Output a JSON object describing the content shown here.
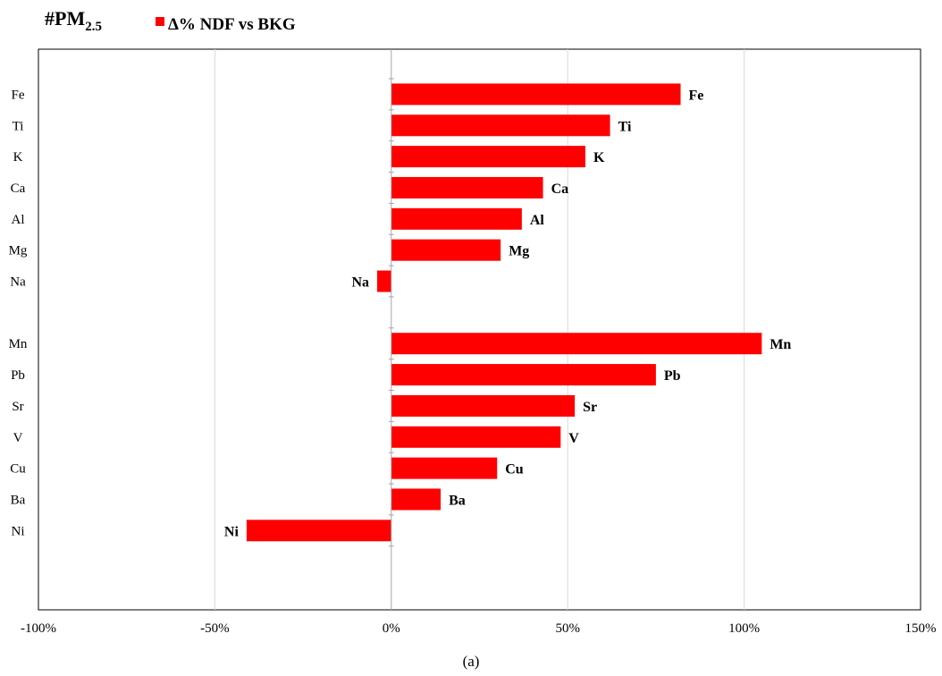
{
  "title": {
    "main": "#PM",
    "subscript": "2.5"
  },
  "legend": {
    "label": "Δ% NDF vs BKG",
    "color": "#ff0000",
    "placement": "top"
  },
  "caption": "(a)",
  "chart_data": {
    "type": "bar",
    "orientation": "horizontal",
    "categories": [
      "Fe",
      "Ti",
      "K",
      "Ca",
      "Al",
      "Mg",
      "Na",
      "",
      "Mn",
      "Pb",
      "Sr",
      "V",
      "Cu",
      "Ba",
      "Ni"
    ],
    "series": [
      {
        "name": "Δ% NDF vs BKG",
        "color": "#ff0000",
        "values": [
          82,
          62,
          55,
          43,
          37,
          31,
          -4,
          null,
          105,
          75,
          52,
          48,
          30,
          14,
          -41
        ]
      }
    ],
    "data_labels": [
      "Fe",
      "Ti",
      "K",
      "Ca",
      "Al",
      "Mg",
      "Na",
      "",
      "Mn",
      "Pb",
      "Sr",
      "V",
      "Cu",
      "Ba",
      "Ni"
    ],
    "xlim": [
      -100,
      150
    ],
    "xticks": [
      -100,
      -50,
      0,
      50,
      100,
      150
    ],
    "xtick_labels": [
      "-100%",
      "-50%",
      "0%",
      "50%",
      "100%",
      "150%"
    ],
    "xlabel": "",
    "ylabel": "",
    "grid": "vertical"
  }
}
